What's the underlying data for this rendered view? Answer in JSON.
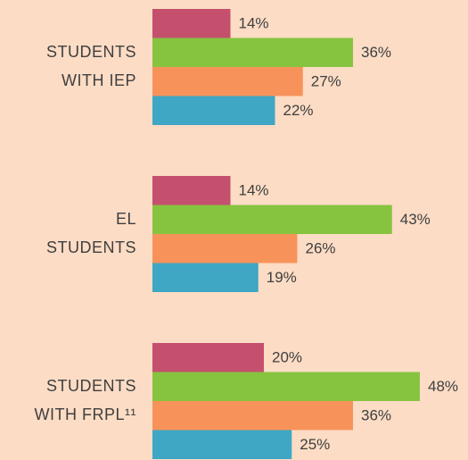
{
  "chart_data": {
    "type": "bar",
    "orientation": "horizontal",
    "categories": [
      [
        "STUDENTS",
        "WITH IEP"
      ],
      [
        "EL",
        "STUDENTS"
      ],
      [
        "STUDENTS",
        "WITH FRPL¹¹"
      ]
    ],
    "series": [
      {
        "color": "#c4506e",
        "values": [
          14,
          14,
          20
        ],
        "value_labels": [
          "14%",
          "14%",
          "20%"
        ]
      },
      {
        "color": "#86c440",
        "values": [
          36,
          43,
          48
        ],
        "value_labels": [
          "36%",
          "43%",
          "48%"
        ]
      },
      {
        "color": "#f7935a",
        "values": [
          27,
          26,
          36
        ],
        "value_labels": [
          "27%",
          "26%",
          "36%"
        ]
      },
      {
        "color": "#3fa6c4",
        "values": [
          22,
          19,
          25
        ],
        "value_labels": [
          "22%",
          "19%",
          "25%"
        ]
      }
    ]
  }
}
